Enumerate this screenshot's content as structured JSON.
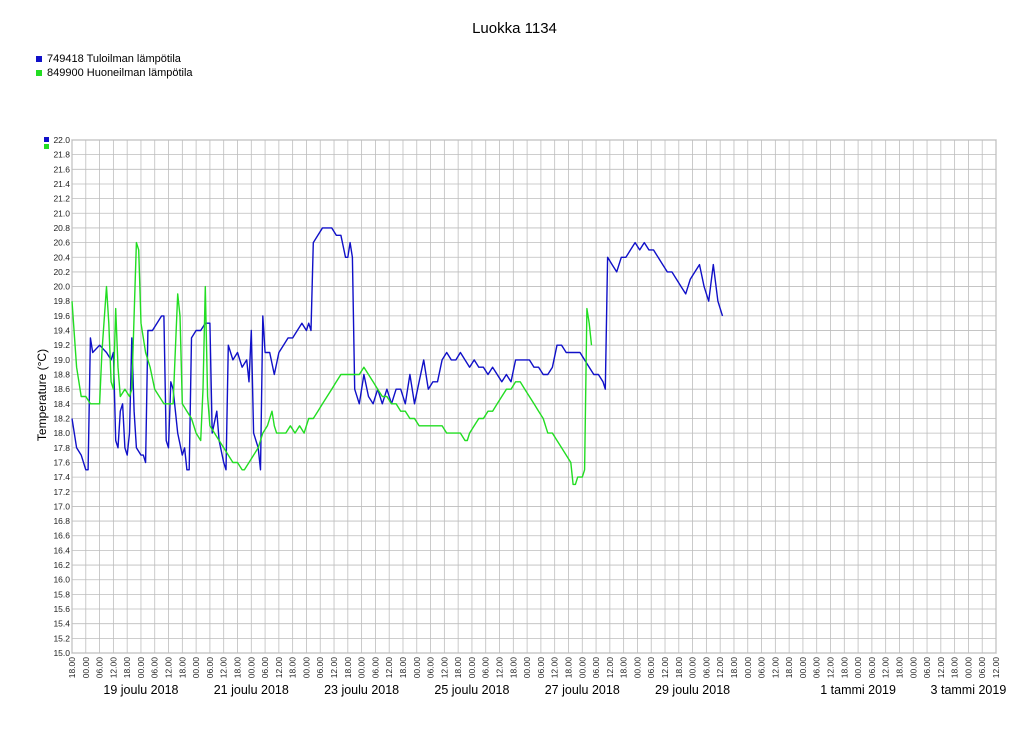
{
  "chart_data": {
    "type": "line",
    "title": "Luokka 1134",
    "ylabel": "Temperature (°C)",
    "xlabel": "",
    "ylim": [
      15.0,
      22.0
    ],
    "ytick_step": 0.2,
    "x_range_hours": [
      0,
      402
    ],
    "x_tick_labels": [
      "18.00",
      "00.00",
      "06.00",
      "12.00"
    ],
    "x_tick_sequence": [
      "18.00",
      "00.00",
      "06.00",
      "12.00",
      "18.00",
      "00.00",
      "06.00",
      "12.00",
      "18.00",
      "00.00",
      "06.00",
      "12.00",
      "18.00",
      "00.00",
      "06.00",
      "12.00",
      "18.00",
      "00.00",
      "06.00",
      "12.00",
      "18.00",
      "00.00",
      "06.00",
      "12.00",
      "18.00",
      "00.00",
      "06.00",
      "12.00",
      "18.00",
      "00.00",
      "06.00",
      "12.00",
      "18.00",
      "00.00",
      "06.00",
      "12.00",
      "18.00",
      "00.00",
      "06.00",
      "12.00",
      "18.00",
      "00.00",
      "06.00",
      "12.00",
      "18.00",
      "00.00",
      "06.00",
      "12.00",
      "18.00",
      "00.00",
      "06.00",
      "12.00",
      "18.00",
      "00.00",
      "06.00",
      "12.00",
      "18.00",
      "00.00",
      "06.00",
      "12.00",
      "18.00",
      "00.00",
      "06.00",
      "12.00",
      "18.00",
      "00.00",
      "06.00",
      "12.00"
    ],
    "date_labels": [
      {
        "label": "19 joulu 2018",
        "x_hour": 30
      },
      {
        "label": "21 joulu 2018",
        "x_hour": 78
      },
      {
        "label": "23 joulu 2018",
        "x_hour": 126
      },
      {
        "label": "25 joulu 2018",
        "x_hour": 174
      },
      {
        "label": "27 joulu 2018",
        "x_hour": 222
      },
      {
        "label": "29 joulu 2018",
        "x_hour": 270
      },
      {
        "label": "1 tammi 2019",
        "x_hour": 342
      },
      {
        "label": "3 tammi 2019",
        "x_hour": 390
      }
    ],
    "grid": true,
    "legend_position": "top-left",
    "series": [
      {
        "name": "749418 Tuloilman lämpötila",
        "color": "#1010c8",
        "points": [
          [
            0,
            18.2
          ],
          [
            2,
            17.8
          ],
          [
            4,
            17.7
          ],
          [
            6,
            17.5
          ],
          [
            7,
            17.5
          ],
          [
            8,
            19.3
          ],
          [
            9,
            19.1
          ],
          [
            12,
            19.2
          ],
          [
            15,
            19.1
          ],
          [
            17,
            19.0
          ],
          [
            18,
            19.1
          ],
          [
            19,
            17.9
          ],
          [
            20,
            17.8
          ],
          [
            21,
            18.3
          ],
          [
            22,
            18.4
          ],
          [
            23,
            17.8
          ],
          [
            24,
            17.7
          ],
          [
            25,
            18.0
          ],
          [
            26,
            19.3
          ],
          [
            27,
            18.3
          ],
          [
            28,
            17.8
          ],
          [
            30,
            17.7
          ],
          [
            31,
            17.7
          ],
          [
            32,
            17.6
          ],
          [
            33,
            19.4
          ],
          [
            35,
            19.4
          ],
          [
            37,
            19.5
          ],
          [
            39,
            19.6
          ],
          [
            40,
            19.6
          ],
          [
            41,
            17.9
          ],
          [
            42,
            17.8
          ],
          [
            43,
            18.7
          ],
          [
            44,
            18.6
          ],
          [
            46,
            18.0
          ],
          [
            48,
            17.7
          ],
          [
            49,
            17.8
          ],
          [
            50,
            17.5
          ],
          [
            51,
            17.5
          ],
          [
            52,
            19.3
          ],
          [
            54,
            19.4
          ],
          [
            56,
            19.4
          ],
          [
            58,
            19.5
          ],
          [
            60,
            19.5
          ],
          [
            61,
            18.0
          ],
          [
            63,
            18.3
          ],
          [
            64,
            17.9
          ],
          [
            66,
            17.6
          ],
          [
            67,
            17.5
          ],
          [
            68,
            19.2
          ],
          [
            69,
            19.1
          ],
          [
            70,
            19.0
          ],
          [
            72,
            19.1
          ],
          [
            74,
            18.9
          ],
          [
            76,
            19.0
          ],
          [
            77,
            18.7
          ],
          [
            78,
            19.4
          ],
          [
            79,
            18.0
          ],
          [
            81,
            17.8
          ],
          [
            82,
            17.5
          ],
          [
            83,
            19.6
          ],
          [
            84,
            19.1
          ],
          [
            86,
            19.1
          ],
          [
            88,
            18.8
          ],
          [
            90,
            19.1
          ],
          [
            92,
            19.2
          ],
          [
            94,
            19.3
          ],
          [
            96,
            19.3
          ],
          [
            98,
            19.4
          ],
          [
            100,
            19.5
          ],
          [
            102,
            19.4
          ],
          [
            103,
            19.5
          ],
          [
            104,
            19.4
          ],
          [
            105,
            20.6
          ],
          [
            107,
            20.7
          ],
          [
            109,
            20.8
          ],
          [
            111,
            20.8
          ],
          [
            113,
            20.8
          ],
          [
            115,
            20.7
          ],
          [
            117,
            20.7
          ],
          [
            119,
            20.4
          ],
          [
            120,
            20.4
          ],
          [
            121,
            20.6
          ],
          [
            122,
            20.4
          ],
          [
            123,
            18.6
          ],
          [
            125,
            18.4
          ],
          [
            127,
            18.8
          ],
          [
            129,
            18.5
          ],
          [
            131,
            18.4
          ],
          [
            133,
            18.6
          ],
          [
            135,
            18.4
          ],
          [
            137,
            18.6
          ],
          [
            139,
            18.4
          ],
          [
            141,
            18.6
          ],
          [
            143,
            18.6
          ],
          [
            145,
            18.4
          ],
          [
            147,
            18.8
          ],
          [
            149,
            18.4
          ],
          [
            151,
            18.7
          ],
          [
            153,
            19.0
          ],
          [
            155,
            18.6
          ],
          [
            157,
            18.7
          ],
          [
            159,
            18.7
          ],
          [
            161,
            19.0
          ],
          [
            163,
            19.1
          ],
          [
            165,
            19.0
          ],
          [
            167,
            19.0
          ],
          [
            169,
            19.1
          ],
          [
            171,
            19.0
          ],
          [
            173,
            18.9
          ],
          [
            175,
            19.0
          ],
          [
            177,
            18.9
          ],
          [
            179,
            18.9
          ],
          [
            181,
            18.8
          ],
          [
            183,
            18.9
          ],
          [
            185,
            18.8
          ],
          [
            187,
            18.7
          ],
          [
            189,
            18.8
          ],
          [
            191,
            18.7
          ],
          [
            193,
            19.0
          ],
          [
            195,
            19.0
          ],
          [
            197,
            19.0
          ],
          [
            199,
            19.0
          ],
          [
            201,
            18.9
          ],
          [
            203,
            18.9
          ],
          [
            205,
            18.8
          ],
          [
            207,
            18.8
          ],
          [
            209,
            18.9
          ],
          [
            211,
            19.2
          ],
          [
            213,
            19.2
          ],
          [
            215,
            19.1
          ],
          [
            217,
            19.1
          ],
          [
            219,
            19.1
          ],
          [
            221,
            19.1
          ],
          [
            223,
            19.0
          ],
          [
            225,
            18.9
          ],
          [
            227,
            18.8
          ],
          [
            229,
            18.8
          ],
          [
            231,
            18.7
          ],
          [
            232,
            18.6
          ],
          [
            233,
            20.4
          ],
          [
            235,
            20.3
          ],
          [
            237,
            20.2
          ],
          [
            239,
            20.4
          ],
          [
            241,
            20.4
          ],
          [
            243,
            20.5
          ],
          [
            245,
            20.6
          ],
          [
            247,
            20.5
          ],
          [
            249,
            20.6
          ],
          [
            251,
            20.5
          ],
          [
            253,
            20.5
          ],
          [
            255,
            20.4
          ],
          [
            257,
            20.3
          ],
          [
            259,
            20.2
          ],
          [
            261,
            20.2
          ],
          [
            263,
            20.1
          ],
          [
            265,
            20.0
          ],
          [
            267,
            19.9
          ],
          [
            269,
            20.1
          ],
          [
            271,
            20.2
          ],
          [
            273,
            20.3
          ],
          [
            275,
            20.0
          ],
          [
            277,
            19.8
          ],
          [
            279,
            20.3
          ],
          [
            281,
            19.8
          ],
          [
            283,
            19.6
          ]
        ],
        "note_values_estimated": true
      },
      {
        "name": "849900 Huoneilman lämpötila",
        "color": "#22dd22",
        "points": [
          [
            0,
            19.8
          ],
          [
            2,
            18.9
          ],
          [
            4,
            18.5
          ],
          [
            6,
            18.5
          ],
          [
            8,
            18.4
          ],
          [
            10,
            18.4
          ],
          [
            12,
            18.4
          ],
          [
            13,
            19.1
          ],
          [
            15,
            20.0
          ],
          [
            16,
            19.5
          ],
          [
            17,
            18.7
          ],
          [
            18,
            18.6
          ],
          [
            19,
            19.7
          ],
          [
            20,
            18.9
          ],
          [
            21,
            18.5
          ],
          [
            23,
            18.6
          ],
          [
            25,
            18.5
          ],
          [
            26,
            18.6
          ],
          [
            27,
            19.6
          ],
          [
            28,
            20.6
          ],
          [
            29,
            20.5
          ],
          [
            30,
            19.5
          ],
          [
            32,
            19.1
          ],
          [
            34,
            18.9
          ],
          [
            36,
            18.6
          ],
          [
            38,
            18.5
          ],
          [
            40,
            18.4
          ],
          [
            42,
            18.4
          ],
          [
            44,
            18.4
          ],
          [
            46,
            19.9
          ],
          [
            47,
            19.6
          ],
          [
            48,
            18.4
          ],
          [
            50,
            18.3
          ],
          [
            52,
            18.2
          ],
          [
            54,
            18.0
          ],
          [
            56,
            17.9
          ],
          [
            57,
            18.6
          ],
          [
            58,
            20.0
          ],
          [
            59,
            18.5
          ],
          [
            60,
            18.1
          ],
          [
            62,
            18.0
          ],
          [
            64,
            17.9
          ],
          [
            66,
            17.8
          ],
          [
            68,
            17.7
          ],
          [
            70,
            17.6
          ],
          [
            72,
            17.6
          ],
          [
            74,
            17.5
          ],
          [
            75,
            17.5
          ],
          [
            77,
            17.6
          ],
          [
            79,
            17.7
          ],
          [
            81,
            17.8
          ],
          [
            83,
            18.0
          ],
          [
            85,
            18.1
          ],
          [
            87,
            18.3
          ],
          [
            88,
            18.1
          ],
          [
            89,
            18.0
          ],
          [
            91,
            18.0
          ],
          [
            93,
            18.0
          ],
          [
            95,
            18.1
          ],
          [
            97,
            18.0
          ],
          [
            99,
            18.1
          ],
          [
            101,
            18.0
          ],
          [
            103,
            18.2
          ],
          [
            105,
            18.2
          ],
          [
            107,
            18.3
          ],
          [
            109,
            18.4
          ],
          [
            111,
            18.5
          ],
          [
            113,
            18.6
          ],
          [
            115,
            18.7
          ],
          [
            117,
            18.8
          ],
          [
            119,
            18.8
          ],
          [
            121,
            18.8
          ],
          [
            123,
            18.8
          ],
          [
            125,
            18.8
          ],
          [
            127,
            18.9
          ],
          [
            129,
            18.8
          ],
          [
            131,
            18.7
          ],
          [
            133,
            18.6
          ],
          [
            135,
            18.5
          ],
          [
            137,
            18.5
          ],
          [
            139,
            18.4
          ],
          [
            141,
            18.4
          ],
          [
            143,
            18.3
          ],
          [
            145,
            18.3
          ],
          [
            147,
            18.2
          ],
          [
            149,
            18.2
          ],
          [
            151,
            18.1
          ],
          [
            153,
            18.1
          ],
          [
            155,
            18.1
          ],
          [
            157,
            18.1
          ],
          [
            159,
            18.1
          ],
          [
            161,
            18.1
          ],
          [
            163,
            18.0
          ],
          [
            165,
            18.0
          ],
          [
            167,
            18.0
          ],
          [
            169,
            18.0
          ],
          [
            171,
            17.9
          ],
          [
            172,
            17.9
          ],
          [
            173,
            18.0
          ],
          [
            175,
            18.1
          ],
          [
            177,
            18.2
          ],
          [
            179,
            18.2
          ],
          [
            181,
            18.3
          ],
          [
            183,
            18.3
          ],
          [
            185,
            18.4
          ],
          [
            187,
            18.5
          ],
          [
            189,
            18.6
          ],
          [
            191,
            18.6
          ],
          [
            193,
            18.7
          ],
          [
            195,
            18.7
          ],
          [
            197,
            18.6
          ],
          [
            199,
            18.5
          ],
          [
            201,
            18.4
          ],
          [
            203,
            18.3
          ],
          [
            205,
            18.2
          ],
          [
            207,
            18.0
          ],
          [
            209,
            18.0
          ],
          [
            211,
            17.9
          ],
          [
            213,
            17.8
          ],
          [
            215,
            17.7
          ],
          [
            217,
            17.6
          ],
          [
            218,
            17.3
          ],
          [
            219,
            17.3
          ],
          [
            220,
            17.4
          ],
          [
            222,
            17.4
          ],
          [
            223,
            17.5
          ],
          [
            224,
            19.7
          ],
          [
            225,
            19.5
          ],
          [
            226,
            19.2
          ]
        ],
        "note_values_estimated": true
      }
    ]
  }
}
